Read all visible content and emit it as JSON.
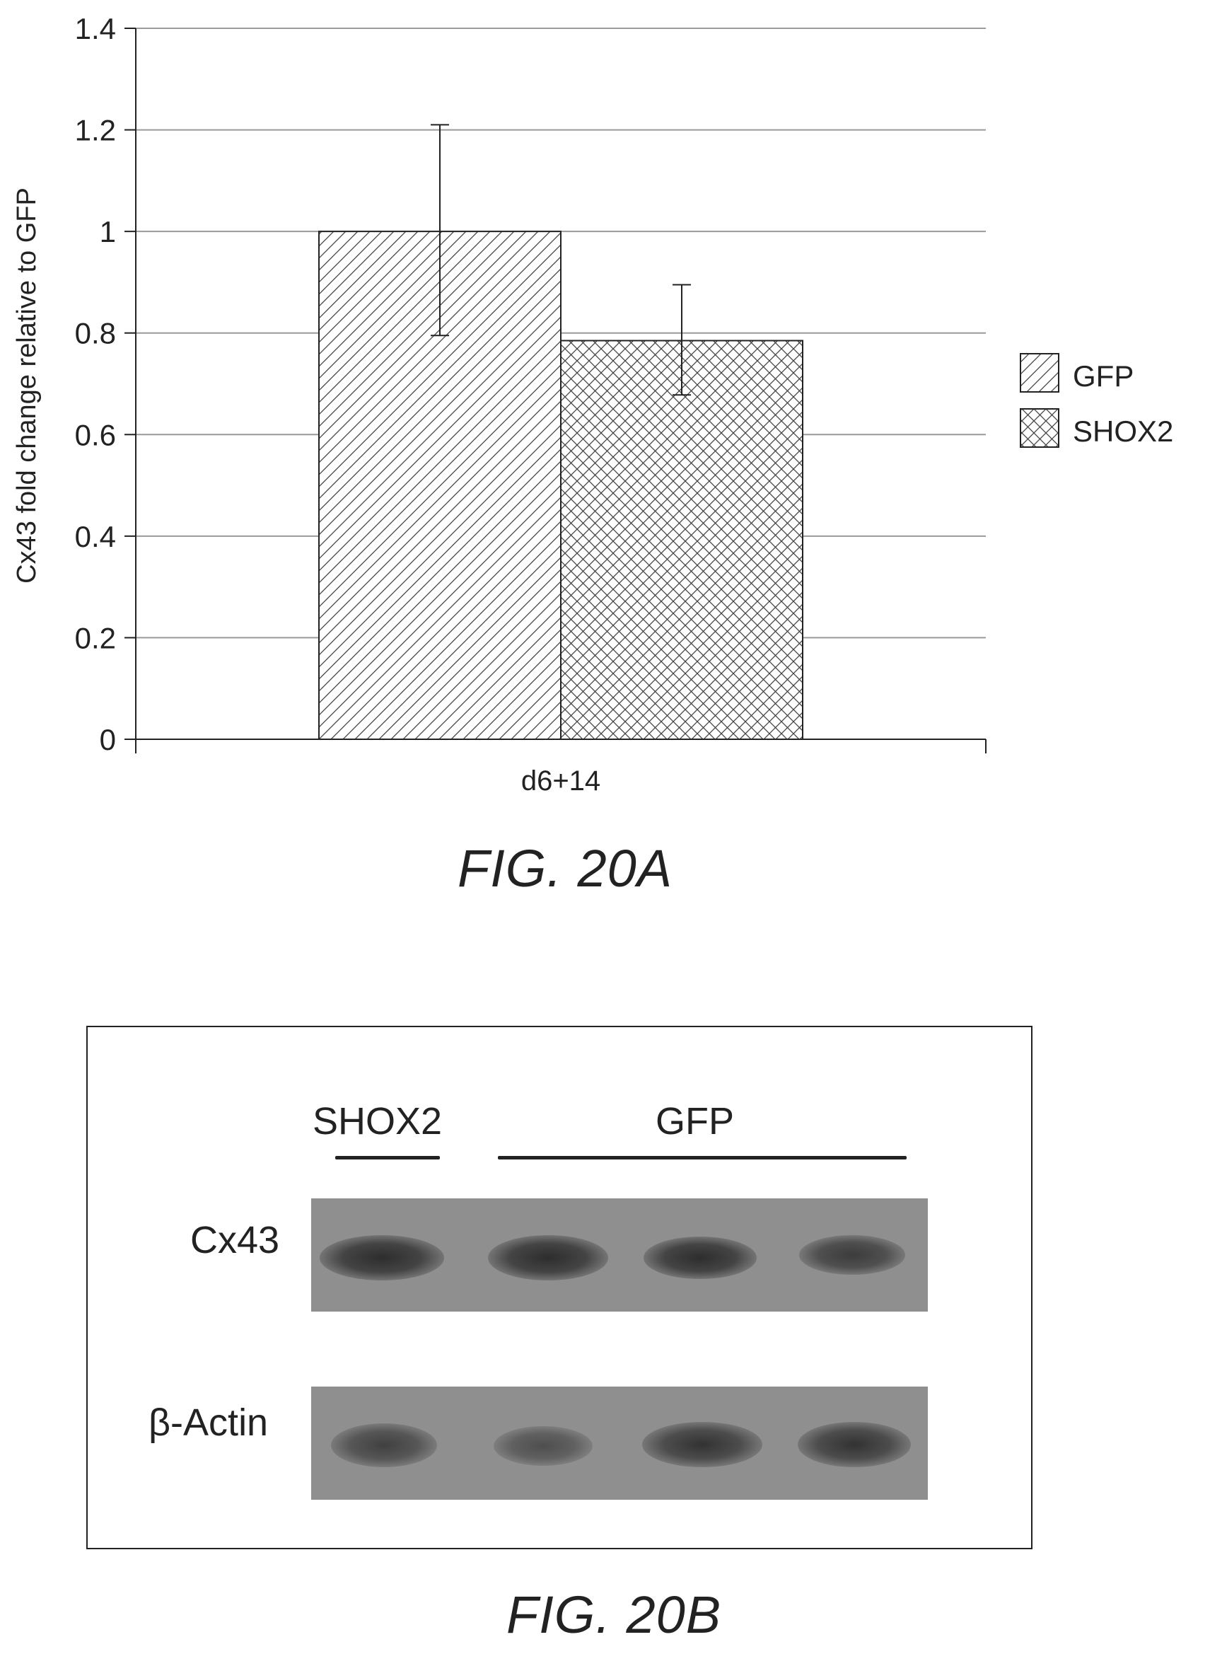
{
  "chart_data": {
    "type": "bar",
    "categories": [
      "d6+14"
    ],
    "series": [
      {
        "name": "GFP",
        "values": [
          1.0
        ],
        "error_low": [
          0.795
        ],
        "error_high": [
          1.21
        ],
        "pattern": "diagonal-hatch"
      },
      {
        "name": "SHOX2",
        "values": [
          0.785
        ],
        "error_low": [
          0.678
        ],
        "error_high": [
          0.895
        ],
        "pattern": "crosshatch"
      }
    ],
    "title": "",
    "xlabel": "",
    "ylabel": "Cx43 fold change relative to GFP",
    "ylim": [
      0,
      1.4
    ],
    "yticks": [
      "0",
      "0.2",
      "0.4",
      "0.6",
      "0.8",
      "1",
      "1.2",
      "1.4"
    ],
    "grid": true,
    "legend_position": "right"
  },
  "figure_a": {
    "caption": "FIG. 20A"
  },
  "figure_b": {
    "caption": "FIG. 20B",
    "group_labels": {
      "shox2": "SHOX2",
      "gfp": "GFP"
    },
    "row_labels": {
      "cx43": "Cx43",
      "actin": "β-Actin"
    }
  },
  "colors": {
    "ink": "#222222",
    "blot_background": "#8f8f8f",
    "gridline": "#9a9a9a"
  }
}
